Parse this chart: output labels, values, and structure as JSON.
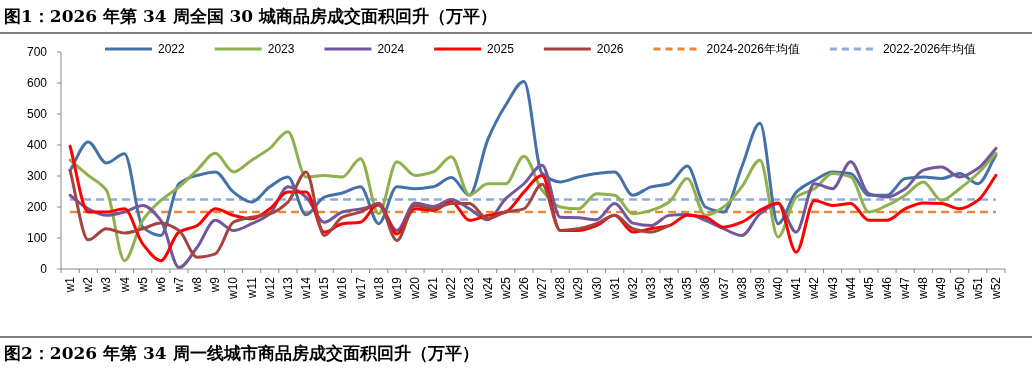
{
  "chart_data": {
    "type": "line",
    "title": "图1：2026 年第 34 周全国 30 城商品房成交面积回升（万平）",
    "annotations": [
      "图2：2026 年第 34 周一线城市商品房成交面积回升（万平）"
    ],
    "categories": [
      "w1",
      "w2",
      "w3",
      "w4",
      "w5",
      "w6",
      "w7",
      "w8",
      "w9",
      "w10",
      "w11",
      "w12",
      "w13",
      "w14",
      "w15",
      "w16",
      "w17",
      "w18",
      "w19",
      "w20",
      "w21",
      "w22",
      "w23",
      "w24",
      "w25",
      "w26",
      "w27",
      "w28",
      "w29",
      "w30",
      "w31",
      "w32",
      "w33",
      "w34",
      "w35",
      "w36",
      "w37",
      "w38",
      "w39",
      "w40",
      "w41",
      "w42",
      "w43",
      "w44",
      "w45",
      "w46",
      "w47",
      "w48",
      "w49",
      "w50",
      "w51",
      "w52"
    ],
    "series": [
      {
        "name": "2022",
        "color": "#4472a8",
        "values": [
          318,
          410,
          342,
          372,
          135,
          108,
          275,
          302,
          313,
          248,
          216,
          265,
          297,
          175,
          232,
          245,
          265,
          146,
          265,
          259,
          265,
          295,
          238,
          416,
          529,
          605,
          308,
          281,
          297,
          308,
          313,
          238,
          265,
          275,
          332,
          200,
          184,
          329,
          470,
          146,
          248,
          286,
          313,
          308,
          238,
          238,
          292,
          297,
          292,
          308,
          275,
          367
        ]
      },
      {
        "name": "2023",
        "color": "#8fb04c",
        "values": [
          351,
          302,
          254,
          27,
          157,
          221,
          265,
          319,
          373,
          313,
          351,
          389,
          443,
          297,
          302,
          297,
          356,
          178,
          346,
          302,
          313,
          362,
          238,
          275,
          275,
          364,
          254,
          200,
          194,
          243,
          238,
          178,
          189,
          216,
          292,
          173,
          200,
          265,
          351,
          103,
          232,
          259,
          308,
          297,
          184,
          205,
          238,
          281,
          221,
          259,
          308,
          373
        ]
      },
      {
        "name": "2024",
        "color": "#73579c",
        "values": [
          238,
          194,
          173,
          184,
          205,
          157,
          5,
          70,
          157,
          124,
          146,
          178,
          265,
          232,
          151,
          184,
          194,
          205,
          124,
          213,
          202,
          224,
          194,
          159,
          227,
          275,
          335,
          167,
          165,
          159,
          211,
          148,
          140,
          173,
          176,
          157,
          130,
          108,
          178,
          211,
          119,
          275,
          259,
          346,
          243,
          232,
          259,
          319,
          329,
          297,
          324,
          389
        ]
      },
      {
        "name": "2025",
        "color": "#ff0000",
        "values": [
          396,
          184,
          184,
          194,
          81,
          27,
          119,
          140,
          194,
          173,
          162,
          194,
          248,
          248,
          119,
          146,
          151,
          211,
          113,
          194,
          189,
          216,
          157,
          173,
          184,
          248,
          302,
          124,
          124,
          140,
          173,
          119,
          130,
          140,
          173,
          167,
          135,
          151,
          189,
          213,
          54,
          221,
          205,
          211,
          157,
          157,
          194,
          213,
          211,
          194,
          221,
          302
        ]
      },
      {
        "name": "2026",
        "color": "#a5433f",
        "values": [
          318,
          94,
          130,
          116,
          130,
          148,
          124,
          38,
          49,
          151,
          167,
          178,
          216,
          313,
          108,
          167,
          184,
          211,
          92,
          205,
          194,
          211,
          211,
          162,
          184,
          194,
          273,
          124,
          130,
          146,
          173,
          130,
          119,
          140,
          null,
          null,
          null,
          null,
          null,
          null,
          null,
          null,
          null,
          null,
          null,
          null,
          null,
          null,
          null,
          null,
          null,
          null
        ]
      }
    ],
    "ref_lines": [
      {
        "axis": "y",
        "value": 184,
        "label": "2024-2026年均值",
        "color": "#e8893a",
        "line_style": "dashed"
      },
      {
        "axis": "y",
        "value": 224,
        "label": "2022-2026年均值",
        "color": "#8eaadb",
        "line_style": "dashed"
      }
    ],
    "ylim": [
      0,
      700
    ],
    "yticks": [
      0,
      100,
      200,
      300,
      400,
      500,
      600,
      700
    ],
    "grid": false,
    "legend": "top"
  }
}
